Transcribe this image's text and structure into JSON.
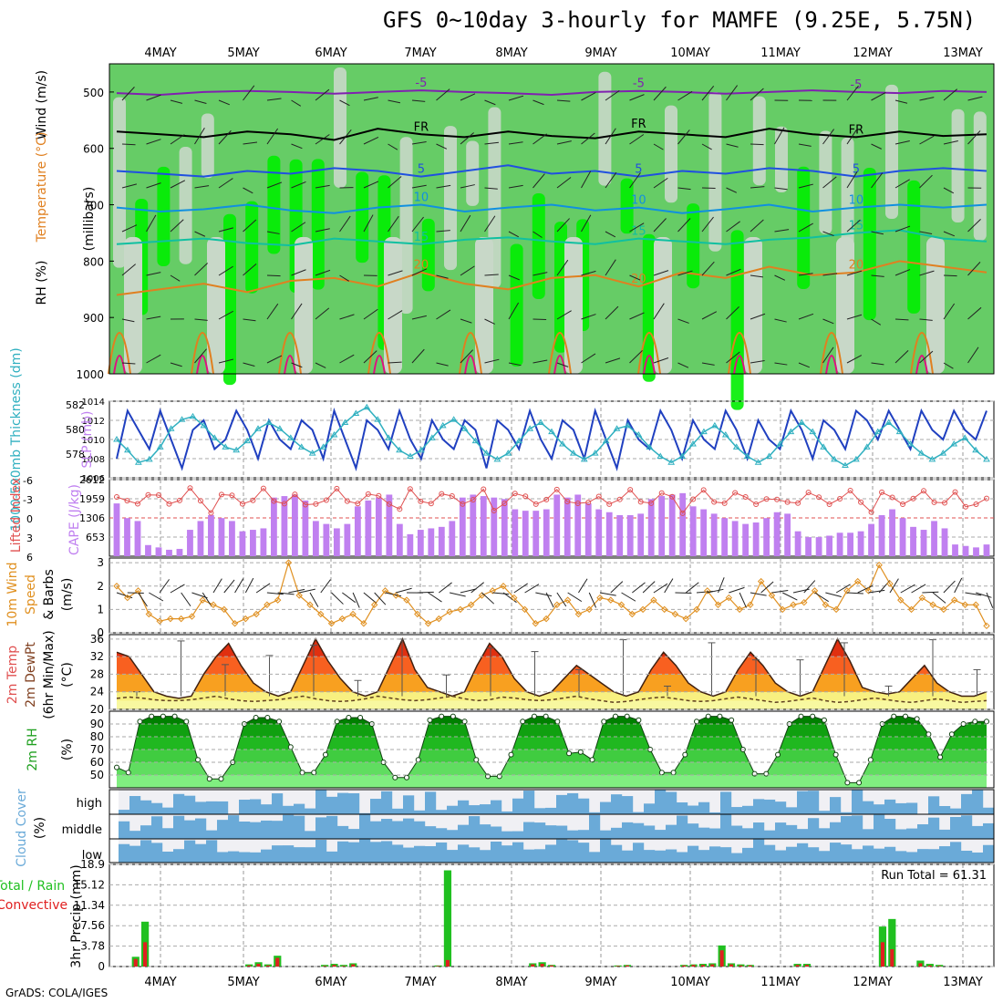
{
  "title": "GFS 0~10day 3-hourly for MAMFE (9.25E, 5.75N)",
  "credit": "GrADS: COLA/IGES",
  "colors": {
    "rh_light": "#c8d8c8",
    "rh_mid": "#66cc66",
    "rh_bright": "#00ee00",
    "slp": "#2040c0",
    "thickness": "#30b0c0",
    "cape": "#c080f0",
    "lifted": "#e05050",
    "wind": "#e09020",
    "temp_fill_low": "#f8f080",
    "temp_fill_mid": "#f8a020",
    "temp_fill_high": "#e03010",
    "rh2m": "#20a020",
    "cloud": "#6aaad8",
    "rain": "#20c020",
    "convective": "#e02020"
  },
  "chart_data": {
    "type": "line",
    "x_dates": [
      "4MAY",
      "5MAY",
      "6MAY",
      "7MAY",
      "8MAY",
      "9MAY",
      "10MAY",
      "11MAY",
      "12MAY",
      "13MAY"
    ],
    "panels": [
      {
        "id": "profile",
        "ylabel": "(millibars)",
        "side_labels": [
          "RH (%)",
          "Temperature (°C)",
          "Wind (m/s)"
        ],
        "yticks": [
          500,
          600,
          700,
          800,
          900,
          1000
        ],
        "ylim": [
          450,
          1000
        ],
        "isotherm_labels": [
          "-5",
          "FR",
          "5",
          "10",
          "15",
          "20"
        ],
        "isotherms": [
          {
            "label": "-5",
            "color": "#8020b0",
            "levels_mb": [
              502,
              505,
              500,
              498,
              500,
              503,
              500,
              497,
              500,
              502,
              505,
              500,
              498,
              500,
              503,
              500,
              497,
              500,
              502,
              498,
              500
            ]
          },
          {
            "label": "FR",
            "color": "#000000",
            "levels_mb": [
              570,
              575,
              580,
              570,
              575,
              585,
              565,
              575,
              580,
              570,
              578,
              582,
              570,
              575,
              580,
              565,
              575,
              580,
              570,
              578,
              575
            ]
          },
          {
            "label": "5",
            "color": "#2050e0",
            "levels_mb": [
              640,
              645,
              650,
              640,
              645,
              635,
              640,
              650,
              640,
              630,
              645,
              640,
              650,
              640,
              645,
              635,
              640,
              650,
              640,
              635,
              640
            ]
          },
          {
            "label": "10",
            "color": "#1090e0",
            "levels_mb": [
              705,
              712,
              708,
              700,
              710,
              715,
              705,
              700,
              712,
              705,
              700,
              710,
              705,
              715,
              708,
              700,
              712,
              705,
              700,
              705,
              700
            ]
          },
          {
            "label": "15",
            "color": "#10c0a0",
            "levels_mb": [
              770,
              765,
              760,
              768,
              772,
              760,
              765,
              770,
              762,
              758,
              765,
              770,
              760,
              765,
              770,
              762,
              758,
              750,
              745,
              760,
              765
            ]
          },
          {
            "label": "20",
            "color": "#e08020",
            "levels_mb": [
              860,
              850,
              840,
              855,
              835,
              830,
              845,
              820,
              840,
              850,
              830,
              825,
              845,
              820,
              830,
              810,
              825,
              820,
              800,
              810,
              820
            ]
          }
        ]
      },
      {
        "id": "slp_thickness",
        "ylabel_left": "1000-500mb Thickness (dm)",
        "ylabel_right": "SLP (mb)",
        "yticks_left": [
          578,
          580,
          582
        ],
        "yticks_right": [
          1006,
          1008,
          1010,
          1012,
          1014
        ],
        "ylim_right": [
          1006,
          1014
        ],
        "slp_mb": [
          1008,
          1013,
          1011,
          1009,
          1013,
          1010,
          1007,
          1011,
          1012,
          1009,
          1010,
          1013,
          1011,
          1008,
          1012,
          1010,
          1009,
          1012,
          1011,
          1008,
          1013,
          1010,
          1007,
          1012,
          1011,
          1009,
          1013,
          1010,
          1008,
          1012,
          1010,
          1009,
          1012,
          1011,
          1007,
          1012,
          1011,
          1009,
          1013,
          1010,
          1008,
          1012,
          1011,
          1008,
          1013,
          1010,
          1007,
          1012,
          1010,
          1009,
          1013,
          1011,
          1008,
          1012,
          1010,
          1009,
          1013,
          1011,
          1008,
          1012,
          1010,
          1009,
          1013,
          1011,
          1008,
          1012,
          1011,
          1009,
          1013,
          1012,
          1010,
          1013,
          1011,
          1009,
          1013,
          1011,
          1010,
          1013,
          1011,
          1010,
          1013
        ],
        "thickness_dm": [
          579.5,
          578.8,
          578.0,
          578.2,
          579.0,
          580.2,
          580.8,
          581.0,
          580.4,
          579.6,
          579.0,
          578.8,
          579.4,
          580.2,
          580.6,
          580.2,
          579.6,
          579.0,
          578.6,
          579.0,
          579.8,
          580.6,
          581.2,
          581.6,
          580.8,
          579.6,
          578.8,
          578.4,
          578.8,
          579.6,
          580.4,
          580.8,
          580.2,
          579.4,
          578.6,
          578.2,
          578.6,
          579.4,
          580.2,
          580.6,
          580.0,
          579.2,
          578.6,
          578.2,
          578.6,
          579.4,
          580.2,
          580.4,
          579.8,
          579.0,
          578.4,
          578.0,
          578.4,
          579.2,
          580.0,
          580.4,
          579.8,
          579.0,
          578.4,
          578.0,
          578.4,
          579.2,
          580.0,
          580.6,
          580.0,
          579.0,
          578.2,
          577.8,
          578.2,
          579.0,
          580.0,
          580.6,
          580.0,
          579.2,
          578.6,
          578.2,
          578.6,
          579.2,
          579.6,
          578.8,
          578.2
        ]
      },
      {
        "id": "cape_li",
        "ylabel_left": "Lifted Index",
        "ylabel_right": "CAPE (J/kg)",
        "yticks_left": [
          "-6",
          "-3",
          "0",
          "3",
          "6"
        ],
        "yticks_right": [
          "653",
          "1306",
          "1959",
          "2612"
        ],
        "ylim_right": [
          0,
          2612
        ],
        "cape_jkg": [
          1800,
          1300,
          1200,
          380,
          300,
          220,
          250,
          900,
          1200,
          1400,
          1300,
          1200,
          850,
          900,
          950,
          2000,
          2050,
          2100,
          1900,
          1200,
          1100,
          950,
          1100,
          1700,
          1900,
          2000,
          2100,
          1100,
          750,
          900,
          950,
          1000,
          1200,
          2000,
          2100,
          2050,
          2000,
          1950,
          1600,
          1550,
          1550,
          1600,
          2100,
          2000,
          2100,
          1800,
          1600,
          1500,
          1400,
          1400,
          1450,
          1950,
          2050,
          2100,
          2150,
          1700,
          1600,
          1450,
          1300,
          1200,
          1100,
          1150,
          1300,
          1500,
          1450,
          850,
          650,
          650,
          700,
          800,
          800,
          850,
          1100,
          1400,
          1600,
          1300,
          1000,
          900,
          1200,
          950,
          400,
          350,
          300,
          400
        ]
      },
      {
        "id": "wind10m",
        "ylabel": "10m Wind Speed & Barbs (m/s)",
        "yticks": [
          "0",
          "1",
          "2",
          "3"
        ],
        "ylim": [
          0,
          3.2
        ],
        "speed_ms": [
          2.0,
          1.5,
          1.8,
          0.8,
          0.5,
          0.6,
          0.6,
          0.7,
          1.4,
          1.2,
          1.0,
          0.4,
          0.6,
          0.8,
          1.2,
          1.4,
          3.0,
          1.6,
          1.2,
          0.8,
          0.4,
          0.6,
          0.8,
          0.4,
          1.2,
          1.8,
          1.6,
          1.4,
          0.8,
          0.4,
          0.6,
          0.9,
          1.0,
          1.2,
          1.6,
          1.8,
          2.0,
          1.5,
          1.0,
          0.4,
          0.6,
          1.2,
          1.4,
          0.8,
          1.0,
          1.5,
          1.4,
          1.2,
          0.8,
          1.0,
          1.4,
          1.0,
          0.8,
          0.6,
          1.0,
          1.8,
          1.2,
          1.5,
          1.0,
          1.2,
          2.2,
          1.6,
          1.0,
          1.2,
          1.3,
          1.8,
          1.2,
          1.0,
          1.8,
          2.2,
          1.8,
          2.9,
          2.1,
          1.4,
          1.0,
          1.5,
          1.2,
          1.0,
          1.4,
          1.2,
          1.2,
          0.3
        ]
      },
      {
        "id": "temp2m",
        "ylabel": "2m Temp 2m DewPt (6hr Min/Max) (°C)",
        "yticks": [
          "20",
          "24",
          "28",
          "32",
          "36"
        ],
        "ylim": [
          20,
          37
        ],
        "temp_c": [
          33,
          32,
          28,
          24,
          23,
          22.5,
          23,
          28,
          32,
          35,
          30,
          26,
          24,
          23,
          24,
          30,
          36,
          31,
          27,
          24,
          23,
          24,
          30,
          36,
          29,
          25,
          24,
          23,
          24,
          30,
          35,
          32,
          27,
          24,
          23,
          24,
          27,
          30,
          28,
          26,
          24,
          23,
          24,
          29,
          33,
          30,
          26,
          24,
          23,
          24,
          29,
          33,
          30,
          26,
          24,
          23,
          24,
          30,
          36,
          31,
          25,
          24,
          23.5,
          24,
          27,
          30,
          26,
          24,
          23,
          23,
          24
        ],
        "dewpt_c": [
          22.5,
          22.8,
          22.6,
          22.2,
          22.0,
          22.0,
          22.2,
          22.6,
          23.0,
          22.4,
          22.0,
          21.8,
          22.0,
          22.2,
          22.6,
          23.0,
          22.4,
          22.0,
          21.8,
          22.0,
          22.4,
          23.0,
          22.6,
          22.2,
          22.0,
          22.2,
          22.6,
          23.0,
          22.4,
          22.0,
          22.2,
          22.8,
          22.6,
          22.2,
          22.0,
          22.2,
          22.6,
          23.0,
          22.4,
          22.0,
          21.6,
          21.8,
          22.2,
          22.6,
          22.8,
          22.4,
          22.0,
          21.8,
          22.0,
          22.4,
          22.8,
          22.4,
          22.0,
          21.6,
          21.8,
          22.2,
          22.6,
          22.0,
          21.6,
          21.8,
          22.2,
          22.6,
          22.2,
          21.8,
          21.6,
          22.0,
          22.4,
          22.0,
          21.6,
          21.8,
          22.0
        ]
      },
      {
        "id": "rh2m",
        "ylabel": "2m RH (%)",
        "yticks": [
          "50",
          "60",
          "70",
          "80",
          "90"
        ],
        "ylim": [
          40,
          100
        ],
        "rh_pct": [
          56,
          52,
          92,
          96,
          96,
          96,
          92,
          62,
          47,
          47,
          60,
          90,
          95,
          95,
          92,
          72,
          52,
          52,
          66,
          92,
          95,
          95,
          90,
          60,
          48,
          48,
          62,
          93,
          96,
          96,
          92,
          62,
          49,
          49,
          66,
          92,
          96,
          96,
          92,
          67,
          68,
          62,
          92,
          96,
          96,
          93,
          70,
          52,
          52,
          66,
          92,
          96,
          96,
          93,
          70,
          51,
          51,
          66,
          90,
          96,
          96,
          93,
          66,
          44,
          44,
          62,
          90,
          96,
          96,
          94,
          82,
          64,
          82,
          90,
          92,
          92
        ]
      },
      {
        "id": "cloud",
        "ylabel": "Cloud Cover (%)",
        "yticks": [
          "high",
          "middle",
          "low"
        ]
      },
      {
        "id": "precip",
        "ylabel": "3hr Precip (mm)",
        "side_labels": [
          "Total / Rain",
          "Convective"
        ],
        "yticks": [
          "0",
          "3.78",
          "7.56",
          "11.34",
          "15.12",
          "18.9"
        ],
        "ylim": [
          0,
          18.9
        ],
        "run_total_label": "Run Total = 61.31",
        "total_mm": [
          0,
          0,
          1.8,
          8.3,
          0,
          0,
          0,
          0,
          0,
          0,
          0,
          0,
          0,
          0,
          0.4,
          0.8,
          0.4,
          2.0,
          0,
          0,
          0,
          0,
          0.3,
          0.5,
          0.3,
          0.6,
          0,
          0,
          0,
          0,
          0,
          0,
          0,
          0,
          0.2,
          17.8,
          0,
          0,
          0,
          0,
          0,
          0,
          0,
          0,
          0.6,
          0.8,
          0.3,
          0,
          0,
          0,
          0,
          0,
          0,
          0.2,
          0.3,
          0,
          0,
          0,
          0,
          0,
          0.3,
          0.4,
          0.5,
          0.6,
          3.9,
          0.6,
          0.4,
          0.3,
          0,
          0,
          0,
          0,
          0.5,
          0.5,
          0,
          0,
          0,
          0,
          0,
          0,
          0,
          7.4,
          8.8,
          0,
          0,
          1.1,
          0.5,
          0.3,
          0,
          0,
          0,
          0,
          0
        ],
        "convective_mm": [
          0,
          0,
          1.4,
          4.5,
          0,
          0,
          0,
          0,
          0,
          0,
          0,
          0,
          0,
          0,
          0.2,
          0.5,
          0.2,
          1.6,
          0,
          0,
          0,
          0,
          0.1,
          0.3,
          0.1,
          0.4,
          0,
          0,
          0,
          0,
          0,
          0,
          0,
          0,
          0.1,
          1.2,
          0,
          0,
          0,
          0,
          0,
          0,
          0,
          0,
          0.4,
          0.5,
          0.2,
          0,
          0,
          0,
          0,
          0,
          0,
          0.1,
          0.2,
          0,
          0,
          0,
          0,
          0,
          0.2,
          0.3,
          0.3,
          0.4,
          3.0,
          0.4,
          0.2,
          0.2,
          0,
          0,
          0,
          0,
          0.3,
          0.3,
          0,
          0,
          0,
          0,
          0,
          0,
          0,
          4.5,
          3.2,
          0,
          0,
          0.6,
          0.2,
          0.1,
          0,
          0,
          0,
          0,
          0
        ]
      }
    ]
  }
}
